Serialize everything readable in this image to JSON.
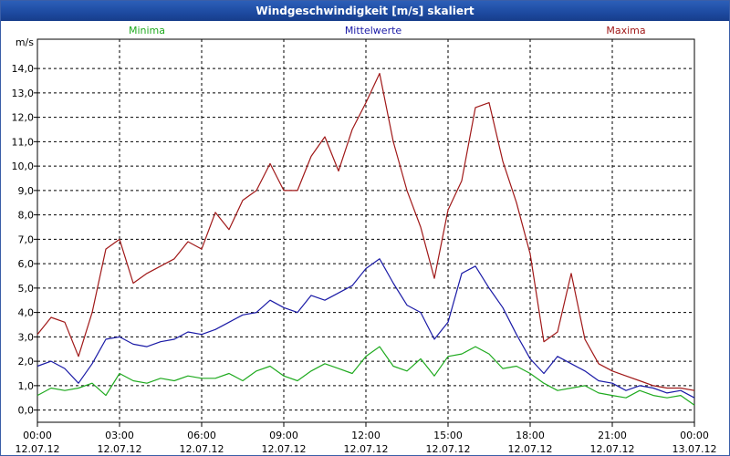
{
  "title": "Windgeschwindigkeit [m/s] skaliert",
  "chart_data": {
    "type": "line",
    "title": "Windgeschwindigkeit [m/s] skaliert",
    "ylabel": "m/s",
    "ylim": [
      -0.5,
      15.2
    ],
    "yticks": [
      "0,0",
      "1,0",
      "2,0",
      "3,0",
      "4,0",
      "5,0",
      "6,0",
      "7,0",
      "8,0",
      "9,0",
      "10,0",
      "11,0",
      "12,0",
      "13,0",
      "14,0"
    ],
    "xlim": [
      0,
      24
    ],
    "xticks": [
      {
        "t": "00:00",
        "d": "12.07.12"
      },
      {
        "t": "03:00",
        "d": "12.07.12"
      },
      {
        "t": "06:00",
        "d": "12.07.12"
      },
      {
        "t": "09:00",
        "d": "12.07.12"
      },
      {
        "t": "12:00",
        "d": "12.07.12"
      },
      {
        "t": "15:00",
        "d": "12.07.12"
      },
      {
        "t": "18:00",
        "d": "12.07.12"
      },
      {
        "t": "21:00",
        "d": "12.07.12"
      },
      {
        "t": "00:00",
        "d": "13.07.12"
      }
    ],
    "series": [
      {
        "name": "Minima",
        "color": "#1faa1f",
        "x": [
          0,
          0.5,
          1,
          1.5,
          2,
          2.5,
          3,
          3.5,
          4,
          4.5,
          5,
          5.5,
          6,
          6.5,
          7,
          7.5,
          8,
          8.5,
          9,
          9.5,
          10,
          10.5,
          11,
          11.5,
          12,
          12.5,
          13,
          13.5,
          14,
          14.5,
          15,
          15.5,
          16,
          16.5,
          17,
          17.5,
          18,
          18.5,
          19,
          19.5,
          20,
          20.5,
          21,
          21.5,
          22,
          22.5,
          23,
          23.5,
          24
        ],
        "values": [
          0.6,
          0.9,
          0.8,
          0.9,
          1.1,
          0.6,
          1.5,
          1.2,
          1.1,
          1.3,
          1.2,
          1.4,
          1.3,
          1.3,
          1.5,
          1.2,
          1.6,
          1.8,
          1.4,
          1.2,
          1.6,
          1.9,
          1.7,
          1.5,
          2.2,
          2.6,
          1.8,
          1.6,
          2.1,
          1.4,
          2.2,
          2.3,
          2.6,
          2.3,
          1.7,
          1.8,
          1.5,
          1.1,
          0.8,
          0.9,
          1.0,
          0.7,
          0.6,
          0.5,
          0.8,
          0.6,
          0.5,
          0.6,
          0.2
        ]
      },
      {
        "name": "Mittelwerte",
        "color": "#1a1aa6",
        "x": [
          0,
          0.5,
          1,
          1.5,
          2,
          2.5,
          3,
          3.5,
          4,
          4.5,
          5,
          5.5,
          6,
          6.5,
          7,
          7.5,
          8,
          8.5,
          9,
          9.5,
          10,
          10.5,
          11,
          11.5,
          12,
          12.5,
          13,
          13.5,
          14,
          14.5,
          15,
          15.5,
          16,
          16.5,
          17,
          17.5,
          18,
          18.5,
          19,
          19.5,
          20,
          20.5,
          21,
          21.5,
          22,
          22.5,
          23,
          23.5,
          24
        ],
        "values": [
          1.8,
          2.0,
          1.7,
          1.1,
          1.9,
          2.9,
          3.0,
          2.7,
          2.6,
          2.8,
          2.9,
          3.2,
          3.1,
          3.3,
          3.6,
          3.9,
          4.0,
          4.5,
          4.2,
          4.0,
          4.7,
          4.5,
          4.8,
          5.1,
          5.8,
          6.2,
          5.2,
          4.3,
          4.0,
          2.9,
          3.6,
          5.6,
          5.9,
          5.0,
          4.2,
          3.1,
          2.1,
          1.5,
          2.2,
          1.9,
          1.6,
          1.2,
          1.1,
          0.8,
          1.0,
          0.9,
          0.7,
          0.8,
          0.5
        ]
      },
      {
        "name": "Maxima",
        "color": "#a01818",
        "x": [
          0,
          0.5,
          1,
          1.5,
          2,
          2.5,
          3,
          3.5,
          4,
          4.5,
          5,
          5.5,
          6,
          6.5,
          7,
          7.5,
          8,
          8.5,
          9,
          9.5,
          10,
          10.5,
          11,
          11.5,
          12,
          12.5,
          13,
          13.5,
          14,
          14.5,
          15,
          15.5,
          16,
          16.5,
          17,
          17.5,
          18,
          18.5,
          19,
          19.5,
          20,
          20.5,
          21,
          21.5,
          22,
          22.5,
          23,
          23.5,
          24
        ],
        "values": [
          3.1,
          3.8,
          3.6,
          2.2,
          4.0,
          6.6,
          7.0,
          5.2,
          5.6,
          5.9,
          6.2,
          6.9,
          6.6,
          8.1,
          7.4,
          8.6,
          9.0,
          10.1,
          9.0,
          9.0,
          10.4,
          11.2,
          9.8,
          11.5,
          12.6,
          13.8,
          11.0,
          9.0,
          7.5,
          5.4,
          8.2,
          9.4,
          12.4,
          12.6,
          10.2,
          8.5,
          6.4,
          2.8,
          3.2,
          5.6,
          2.9,
          1.9,
          1.6,
          1.4,
          1.2,
          1.0,
          0.9,
          0.9,
          0.8
        ]
      }
    ]
  }
}
